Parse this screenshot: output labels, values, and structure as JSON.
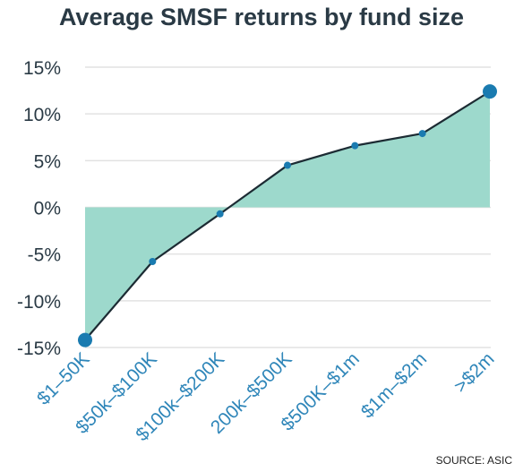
{
  "chart_data": {
    "type": "area",
    "title": "Average SMSF returns by fund size",
    "source": "SOURCE: ASIC",
    "categories": [
      "$1–50K",
      "$50k–$100K",
      "$100k–$200K",
      "200k–$500K",
      "$500K–$1m",
      "$1m–$2m",
      ">$2m"
    ],
    "values": [
      -14.2,
      -5.8,
      -0.7,
      4.5,
      6.6,
      7.9,
      12.4
    ],
    "y_ticks": [
      15,
      10,
      5,
      0,
      -5,
      -10,
      -15
    ],
    "y_tick_labels": [
      "15%",
      "10%",
      "5%",
      "0%",
      "-5%",
      "-10%",
      "-15%"
    ],
    "ylim": [
      -15,
      15
    ],
    "grid": true,
    "colors": {
      "fill": "#9dd9cc",
      "line": "#1c2b33",
      "marker": "#1a7bb0",
      "x_tick_text": "#2f86b9"
    }
  }
}
